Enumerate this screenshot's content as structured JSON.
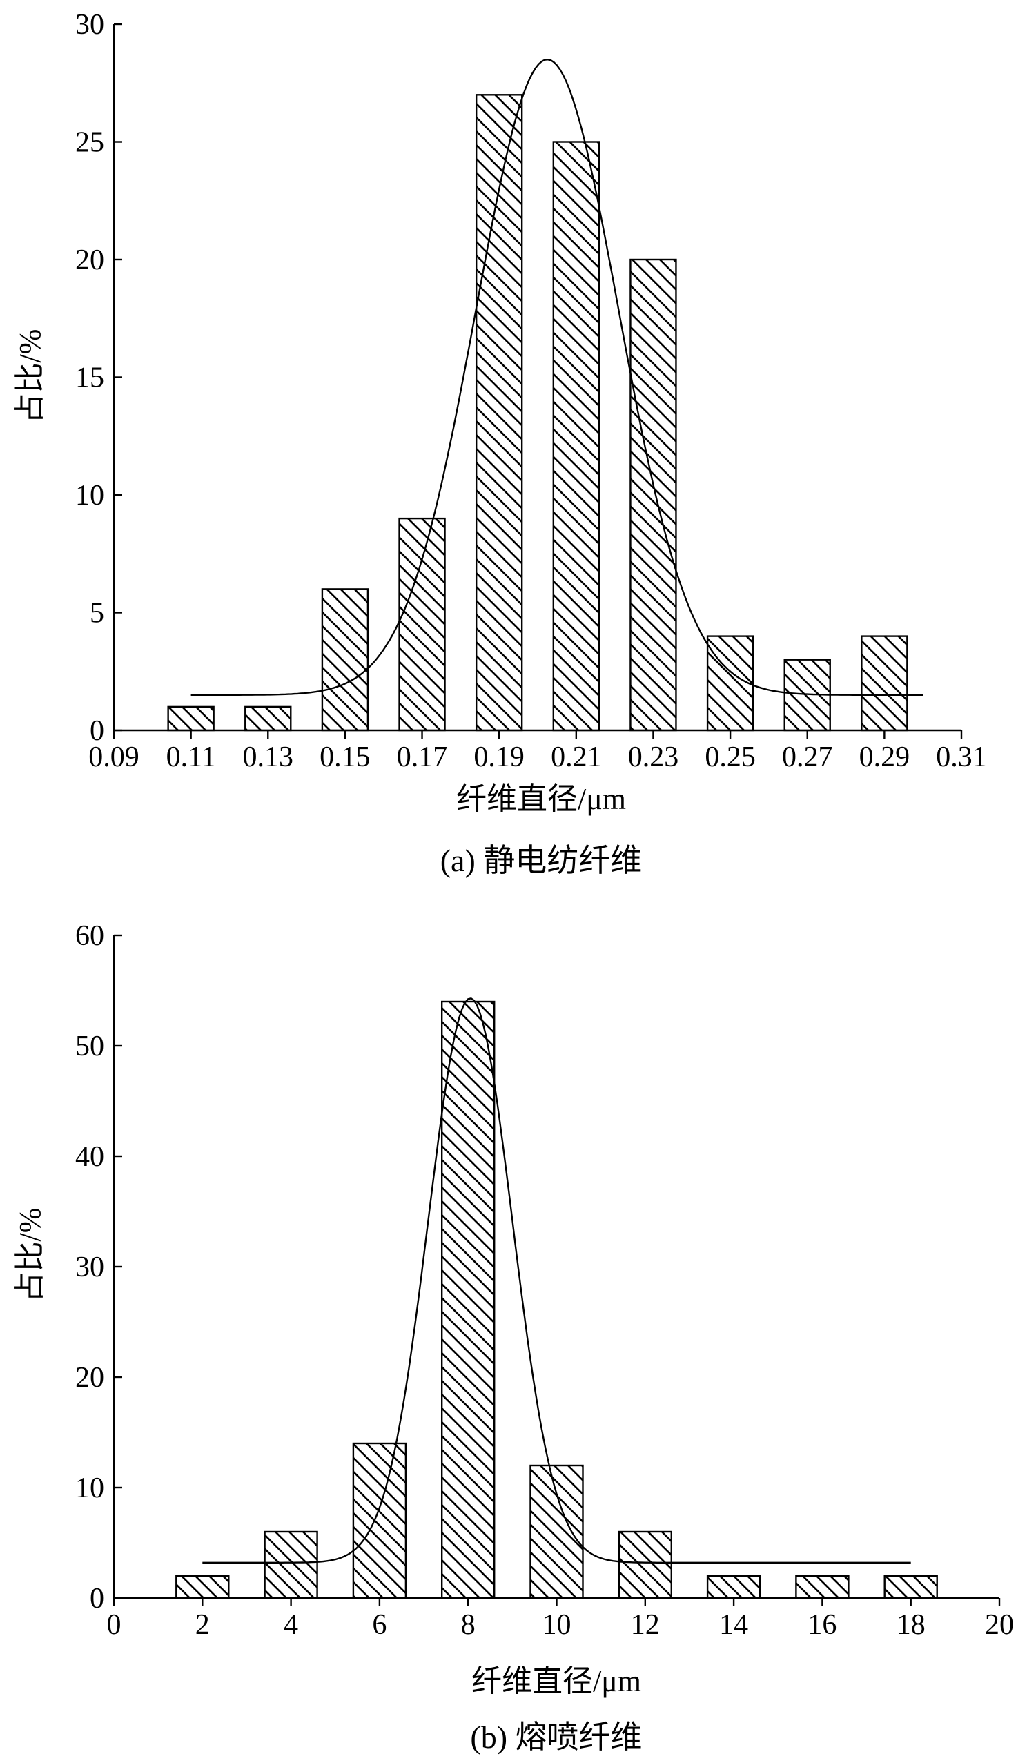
{
  "chart_data": [
    {
      "type": "bar",
      "caption": "(a) 静电纺纤维",
      "xlabel": "纤维直径/μm",
      "ylabel": "占比/%",
      "xlim": [
        0.09,
        0.31
      ],
      "ylim": [
        0,
        30
      ],
      "x_ticks": [
        "0.09",
        "0.11",
        "0.13",
        "0.15",
        "0.17",
        "0.19",
        "0.21",
        "0.23",
        "0.25",
        "0.27",
        "0.29",
        "0.31"
      ],
      "y_ticks": [
        "0",
        "5",
        "10",
        "15",
        "20",
        "25",
        "30"
      ],
      "x": [
        0.11,
        0.13,
        0.15,
        0.17,
        0.19,
        0.21,
        0.23,
        0.25,
        0.27,
        0.29
      ],
      "values": [
        1,
        1,
        6,
        9,
        27,
        25,
        20,
        4,
        3,
        4
      ],
      "bar_fill": "hatched diagonal",
      "fit_curve": {
        "type": "gaussian",
        "baseline": 1.5,
        "peak": 28.5,
        "center": 0.2025,
        "sigma": 0.0185,
        "x_range": [
          0.11,
          0.3
        ]
      }
    },
    {
      "type": "bar",
      "caption": "(b) 熔喷纤维",
      "xlabel": "纤维直径/μm",
      "ylabel": "占比/%",
      "xlim": [
        0,
        20
      ],
      "ylim": [
        0,
        60
      ],
      "x_ticks": [
        "0",
        "2",
        "4",
        "6",
        "8",
        "10",
        "12",
        "14",
        "16",
        "18",
        "20"
      ],
      "y_ticks": [
        "0",
        "10",
        "20",
        "30",
        "40",
        "50",
        "60"
      ],
      "x": [
        2,
        4,
        6,
        8,
        10,
        12,
        14,
        16,
        18
      ],
      "values": [
        2,
        6,
        14,
        54,
        12,
        6,
        2,
        2,
        2
      ],
      "bar_fill": "hatched diagonal",
      "fit_curve": {
        "type": "gaussian",
        "baseline": 3.2,
        "peak": 54.3,
        "center": 8.05,
        "sigma": 0.95,
        "x_range": [
          2,
          18
        ]
      }
    }
  ]
}
